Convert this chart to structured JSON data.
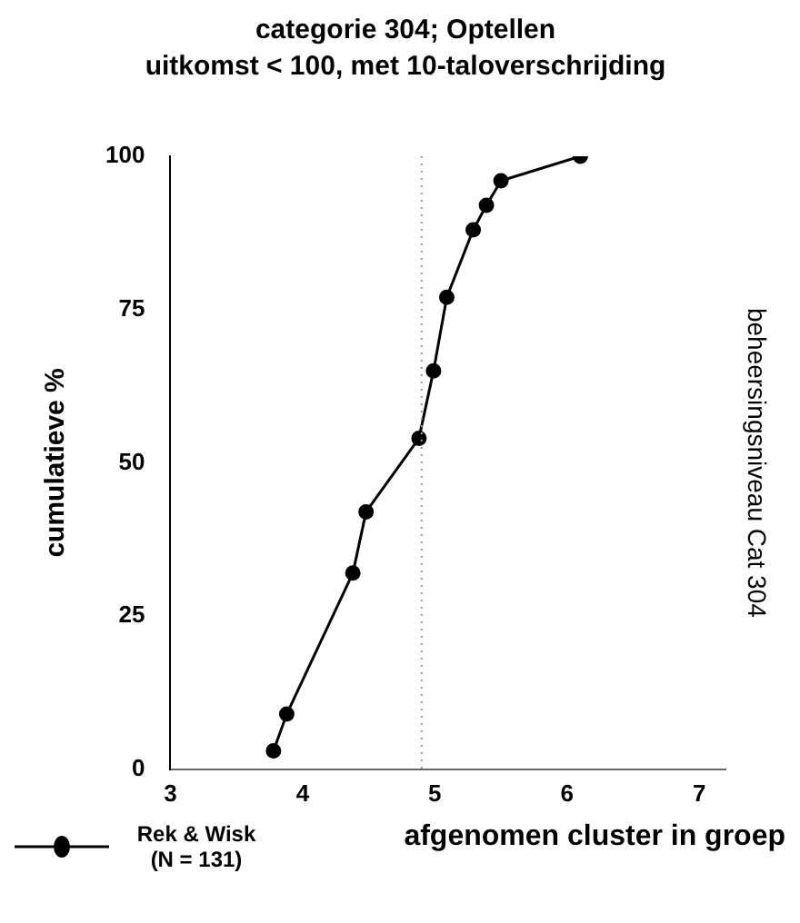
{
  "chart_data": {
    "type": "line",
    "title": "categorie 304; Optellen",
    "subtitle": "uitkomst < 100, met 10-taloverschrijding",
    "xlabel": "afgenomen cluster in groep",
    "ylabel": "cumulatieve %",
    "y2label": "beheersingsniveau Cat 304",
    "x": [
      3.78,
      3.88,
      4.38,
      4.48,
      4.88,
      4.99,
      5.09,
      5.29,
      5.39,
      5.5,
      6.1
    ],
    "series": [
      {
        "name": "Rek & Wisk (N = 131)",
        "color": "#000000",
        "values": [
          3,
          9,
          32,
          42,
          54,
          65,
          77,
          88,
          92,
          96,
          100
        ]
      }
    ],
    "xlim": [
      3,
      7.2
    ],
    "xticks": [
      3,
      4,
      5,
      6,
      7
    ],
    "ylim": [
      0,
      100
    ],
    "yticks": [
      0,
      25,
      50,
      75,
      100
    ],
    "ref_lines": [
      {
        "axis": "x",
        "value": 4.9,
        "color": "#999999",
        "line_style": "dotted"
      }
    ],
    "grid": false,
    "legend": "bottom left",
    "marker": "circle",
    "line_style": "solid"
  }
}
